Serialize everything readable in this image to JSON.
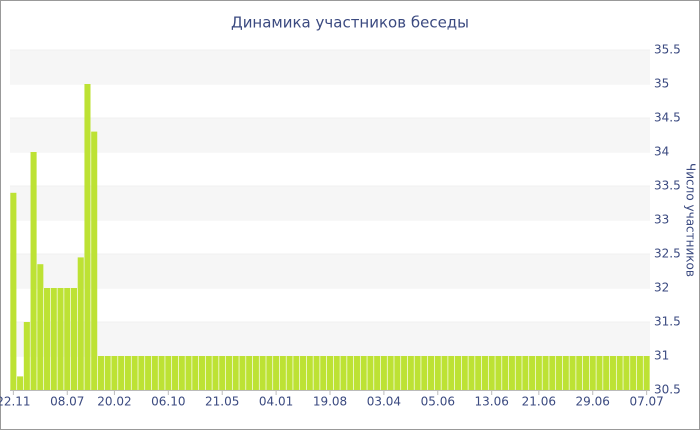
{
  "chart_data": {
    "type": "bar",
    "title": "Динамика участников беседы",
    "y_label": "Число участников",
    "categories": [
      "22.11",
      null,
      null,
      null,
      null,
      null,
      null,
      null,
      "08.07",
      null,
      null,
      null,
      null,
      null,
      null,
      "20.02",
      null,
      null,
      null,
      null,
      null,
      null,
      null,
      "06.10",
      null,
      null,
      null,
      null,
      null,
      null,
      null,
      "21.05",
      null,
      null,
      null,
      null,
      null,
      null,
      null,
      "04.01",
      null,
      null,
      null,
      null,
      null,
      null,
      null,
      "19.08",
      null,
      null,
      null,
      null,
      null,
      null,
      null,
      "03.04",
      null,
      null,
      null,
      null,
      null,
      null,
      null,
      "05.06",
      null,
      null,
      null,
      null,
      null,
      null,
      null,
      "13.06",
      null,
      null,
      null,
      null,
      null,
      null,
      "21.06",
      null,
      null,
      null,
      null,
      null,
      null,
      null,
      "29.06",
      null,
      null,
      null,
      null,
      null,
      null,
      null,
      "07.07"
    ],
    "values": [
      33.4,
      30.7,
      31.5,
      34,
      32.35,
      32,
      32,
      32,
      32,
      32,
      32.45,
      35,
      34.3,
      31,
      31,
      31,
      31,
      31,
      31,
      31,
      31,
      31,
      31,
      31,
      31,
      31,
      31,
      31,
      31,
      31,
      31,
      31,
      31,
      31,
      31,
      31,
      31,
      31,
      31,
      31,
      31,
      31,
      31,
      31,
      31,
      31,
      31,
      31,
      31,
      31,
      31,
      31,
      31,
      31,
      31,
      31,
      31,
      31,
      31,
      31,
      31,
      31,
      31,
      31,
      31,
      31,
      31,
      31,
      31,
      31,
      31,
      31,
      31,
      31,
      31,
      31,
      31,
      31,
      31,
      31,
      31,
      31,
      31,
      31,
      31,
      31,
      31,
      31,
      31,
      31,
      31,
      31,
      31,
      31,
      31
    ],
    "color": "#bde234",
    "ylim": [
      30.5,
      35.5
    ],
    "yticks": [
      30.5,
      31,
      31.5,
      32,
      32.5,
      33,
      33.5,
      34,
      34.5,
      35,
      35.5
    ],
    "y_axis_side": "right",
    "grid": true
  }
}
